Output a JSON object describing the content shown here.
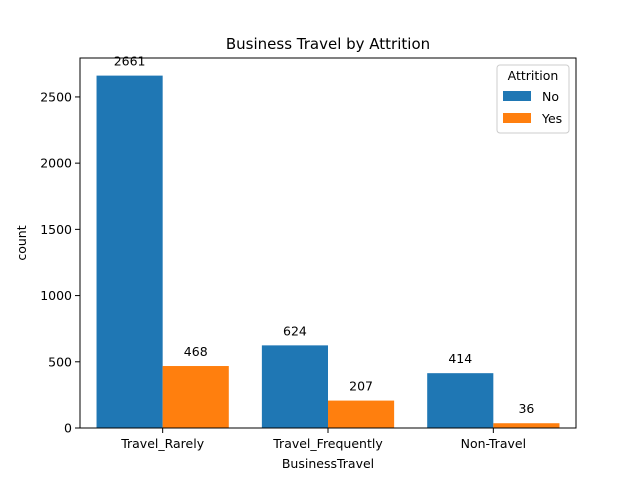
{
  "chart_data": {
    "type": "bar",
    "title": "Business Travel by Attrition",
    "xlabel": "BusinessTravel",
    "ylabel": "count",
    "categories": [
      "Travel_Rarely",
      "Travel_Frequently",
      "Non-Travel"
    ],
    "series": [
      {
        "name": "No",
        "values": [
          2661,
          624,
          414
        ],
        "color": "#1f77b4"
      },
      {
        "name": "Yes",
        "values": [
          468,
          207,
          36
        ],
        "color": "#ff7f0e"
      }
    ],
    "ylim": [
      0,
      2794
    ],
    "yticks": [
      0,
      500,
      1000,
      1500,
      2000,
      2500
    ],
    "grid": false,
    "legend": {
      "title": "Attrition",
      "placement": "top-right"
    }
  }
}
